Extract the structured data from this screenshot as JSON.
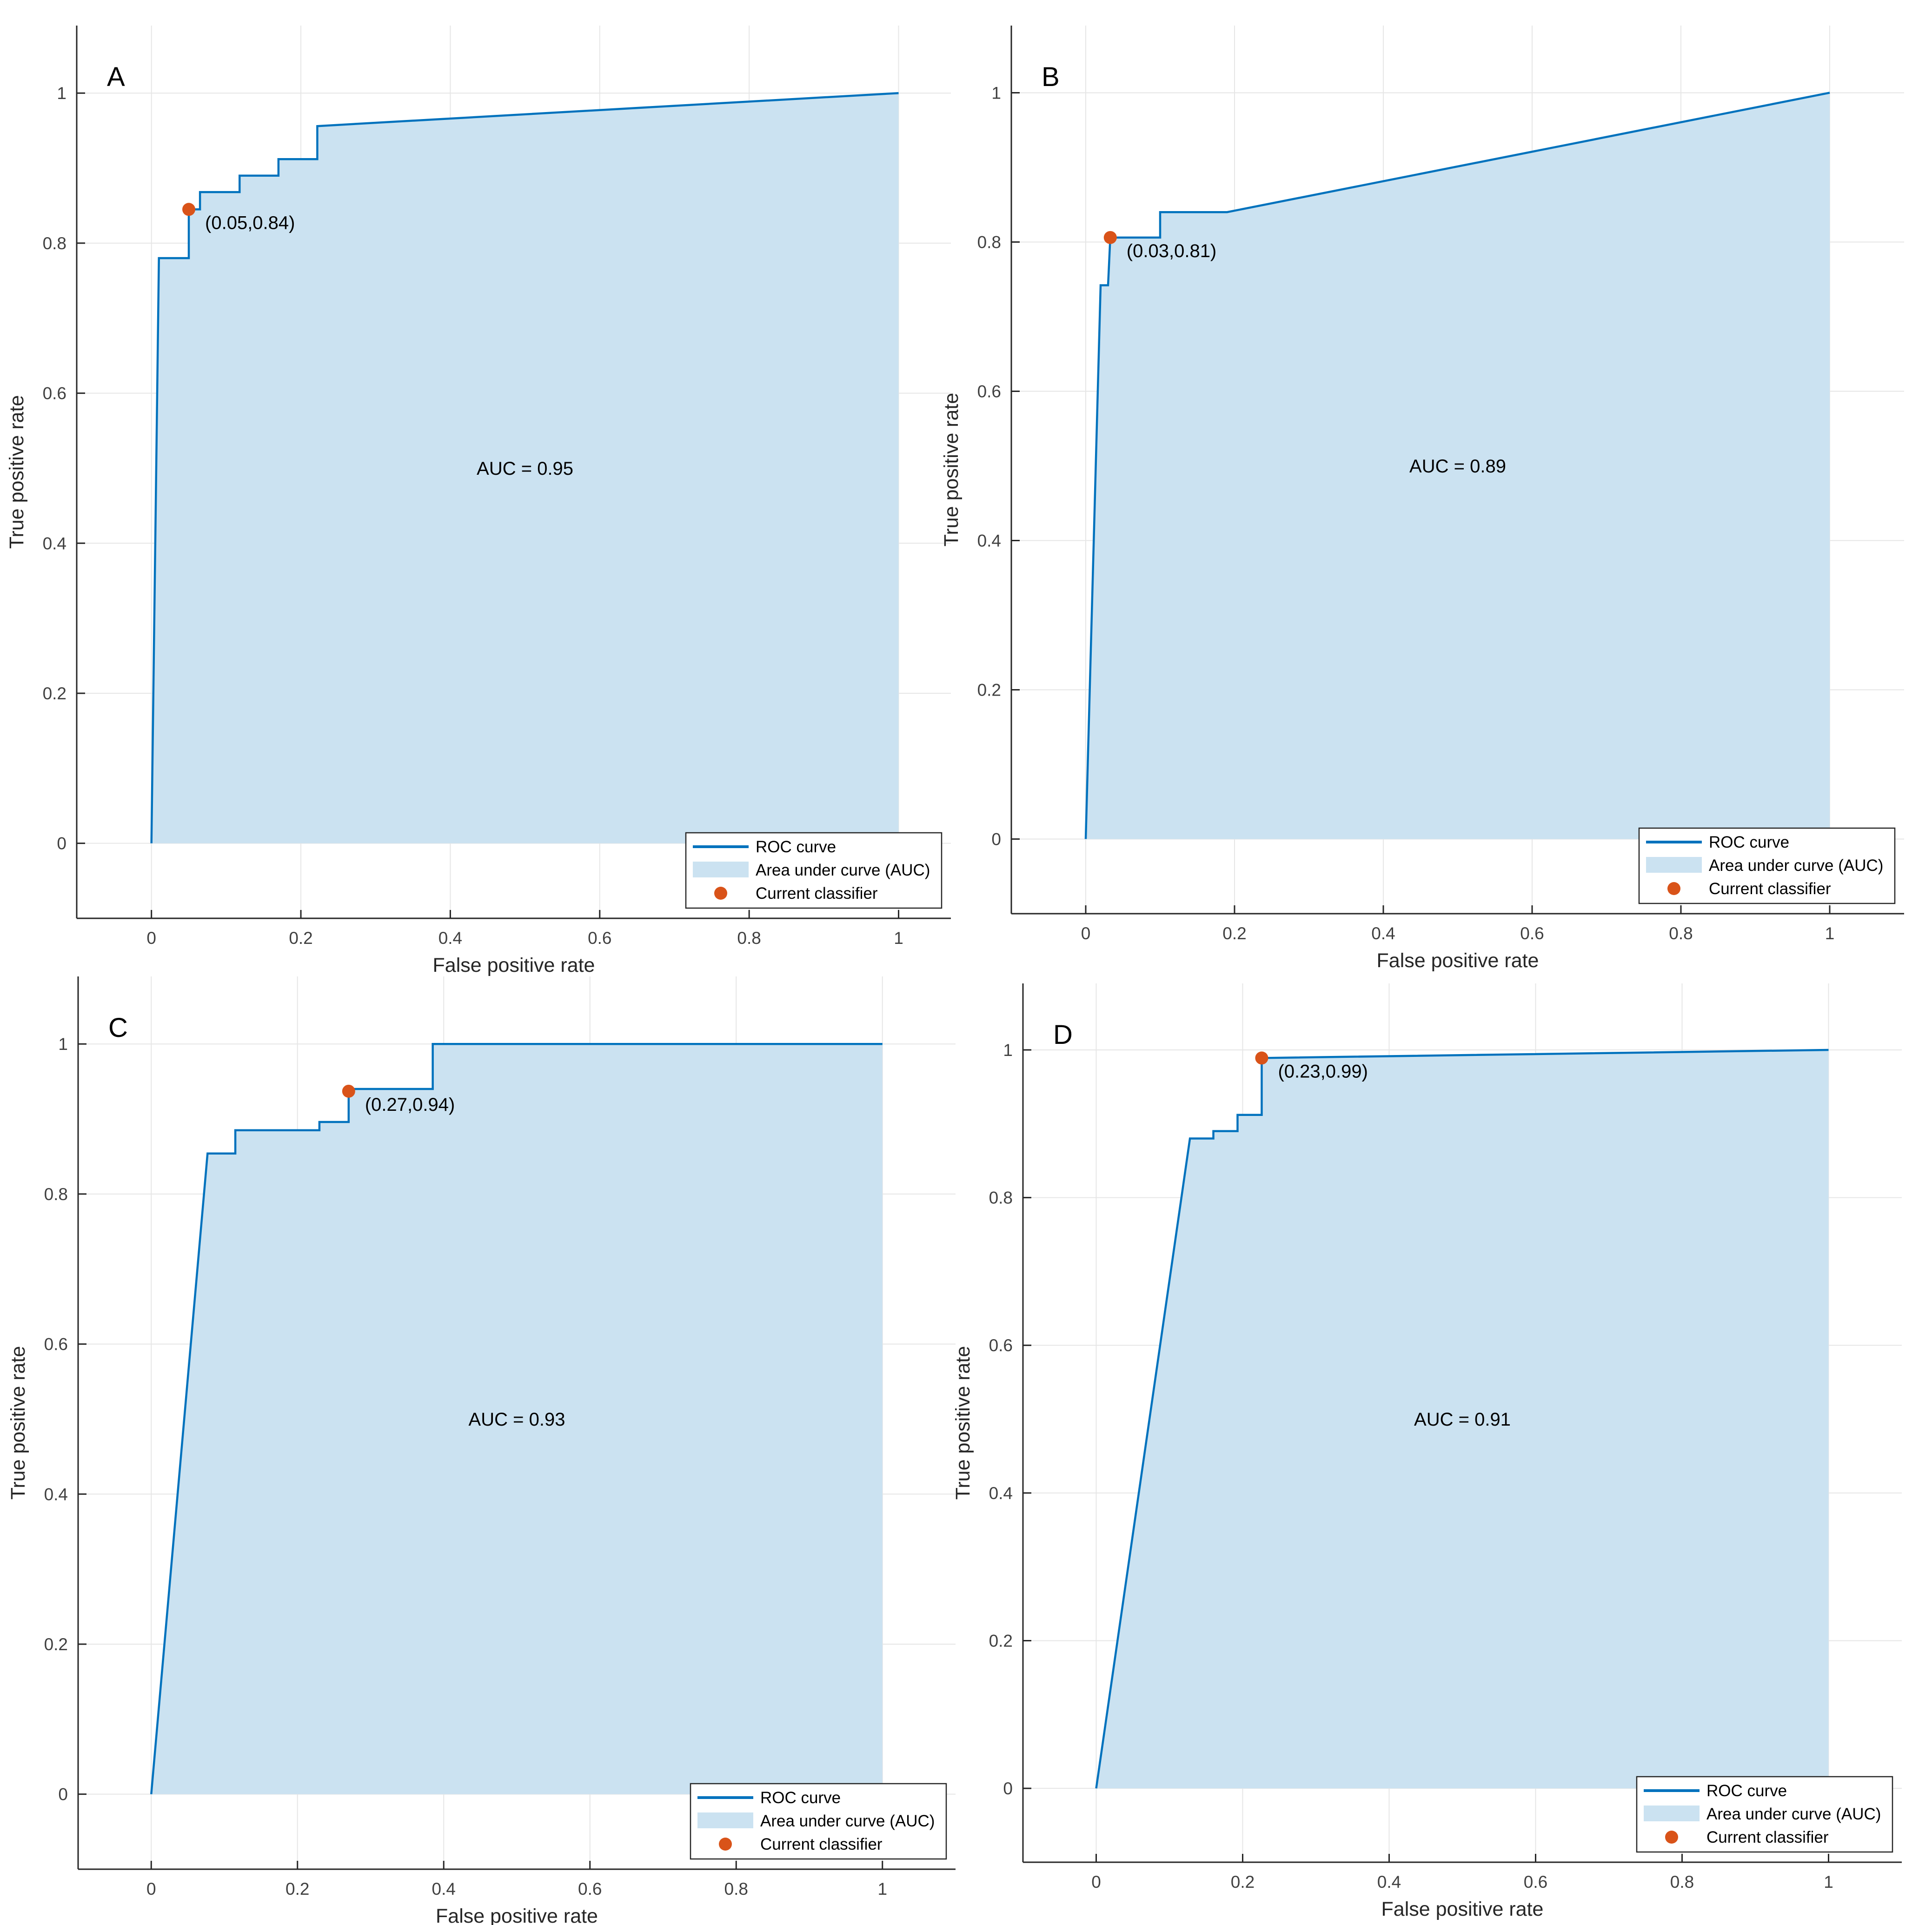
{
  "colors": {
    "curve": "#0072BD",
    "fill": "#CBE2F1",
    "marker": "#D95319",
    "axis": "#262626",
    "grid": "#E6E6E6"
  },
  "chart_data": [
    {
      "type": "area",
      "panel_label": "A",
      "xlabel": "False positive rate",
      "ylabel": "True positive rate",
      "xlim": [
        -0.1,
        1.07
      ],
      "ylim": [
        -0.1,
        1.09
      ],
      "xticks": [
        0,
        0.2,
        0.4,
        0.6,
        0.8,
        1
      ],
      "yticks": [
        0,
        0.2,
        0.4,
        0.6,
        0.8,
        1
      ],
      "grid": true,
      "legend": [
        "ROC curve",
        "Area under curve (AUC)",
        "Current classifier"
      ],
      "legend_position": "bottom-right",
      "auc_text": "AUC = 0.95",
      "auc_pos": [
        0.5,
        0.5
      ],
      "roc": [
        [
          0,
          0
        ],
        [
          0.01,
          0.78
        ],
        [
          0.05,
          0.78
        ],
        [
          0.05,
          0.845
        ],
        [
          0.065,
          0.845
        ],
        [
          0.065,
          0.868
        ],
        [
          0.118,
          0.868
        ],
        [
          0.118,
          0.89
        ],
        [
          0.17,
          0.89
        ],
        [
          0.17,
          0.912
        ],
        [
          0.222,
          0.912
        ],
        [
          0.222,
          0.956
        ],
        [
          1,
          1
        ]
      ],
      "classifier": [
        0.05,
        0.845
      ],
      "classifier_label": "(0.05,0.84)"
    },
    {
      "type": "area",
      "panel_label": "B",
      "xlabel": "False positive rate",
      "ylabel": "True positive rate",
      "xlim": [
        -0.1,
        1.1
      ],
      "ylim": [
        -0.1,
        1.09
      ],
      "xticks": [
        0,
        0.2,
        0.4,
        0.6,
        0.8,
        1
      ],
      "yticks": [
        0,
        0.2,
        0.4,
        0.6,
        0.8,
        1
      ],
      "grid": true,
      "legend": [
        "ROC curve",
        "Area under curve (AUC)",
        "Current classifier"
      ],
      "legend_position": "bottom-right",
      "auc_text": "AUC = 0.89",
      "auc_pos": [
        0.5,
        0.5
      ],
      "roc": [
        [
          0,
          0
        ],
        [
          0.02,
          0.742
        ],
        [
          0.03,
          0.742
        ],
        [
          0.033,
          0.806
        ],
        [
          0.1,
          0.806
        ],
        [
          0.1,
          0.84
        ],
        [
          0.19,
          0.84
        ],
        [
          1,
          1
        ]
      ],
      "classifier": [
        0.033,
        0.806
      ],
      "classifier_label": "(0.03,0.81)"
    },
    {
      "type": "area",
      "panel_label": "C",
      "xlabel": "False positive rate",
      "ylabel": "True positive rate",
      "xlim": [
        -0.1,
        1.1
      ],
      "ylim": [
        -0.1,
        1.09
      ],
      "xticks": [
        0,
        0.2,
        0.4,
        0.6,
        0.8,
        1
      ],
      "yticks": [
        0,
        0.2,
        0.4,
        0.6,
        0.8,
        1
      ],
      "grid": true,
      "legend": [
        "ROC curve",
        "Area under curve (AUC)",
        "Current classifier"
      ],
      "legend_position": "bottom-right",
      "auc_text": "AUC = 0.93",
      "auc_pos": [
        0.5,
        0.5
      ],
      "roc": [
        [
          0,
          0
        ],
        [
          0.077,
          0.854
        ],
        [
          0.115,
          0.854
        ],
        [
          0.115,
          0.885
        ],
        [
          0.23,
          0.885
        ],
        [
          0.23,
          0.896
        ],
        [
          0.27,
          0.896
        ],
        [
          0.27,
          0.94
        ],
        [
          0.385,
          0.94
        ],
        [
          0.385,
          1
        ],
        [
          1,
          1
        ]
      ],
      "classifier": [
        0.27,
        0.937
      ],
      "classifier_label": "(0.27,0.94)"
    },
    {
      "type": "area",
      "panel_label": "D",
      "xlabel": "False positive rate",
      "ylabel": "True positive rate",
      "xlim": [
        -0.1,
        1.1
      ],
      "ylim": [
        -0.1,
        1.09
      ],
      "xticks": [
        0,
        0.2,
        0.4,
        0.6,
        0.8,
        1
      ],
      "yticks": [
        0,
        0.2,
        0.4,
        0.6,
        0.8,
        1
      ],
      "grid": true,
      "legend": [
        "ROC curve",
        "Area under curve (AUC)",
        "Current classifier"
      ],
      "legend_position": "bottom-right",
      "auc_text": "AUC = 0.91",
      "auc_pos": [
        0.5,
        0.5
      ],
      "roc": [
        [
          0,
          0
        ],
        [
          0.128,
          0.88
        ],
        [
          0.16,
          0.88
        ],
        [
          0.16,
          0.89
        ],
        [
          0.193,
          0.89
        ],
        [
          0.193,
          0.912
        ],
        [
          0.226,
          0.912
        ],
        [
          0.226,
          0.989
        ],
        [
          1,
          1
        ]
      ],
      "classifier": [
        0.226,
        0.989
      ],
      "classifier_label": "(0.23,0.99)"
    }
  ]
}
